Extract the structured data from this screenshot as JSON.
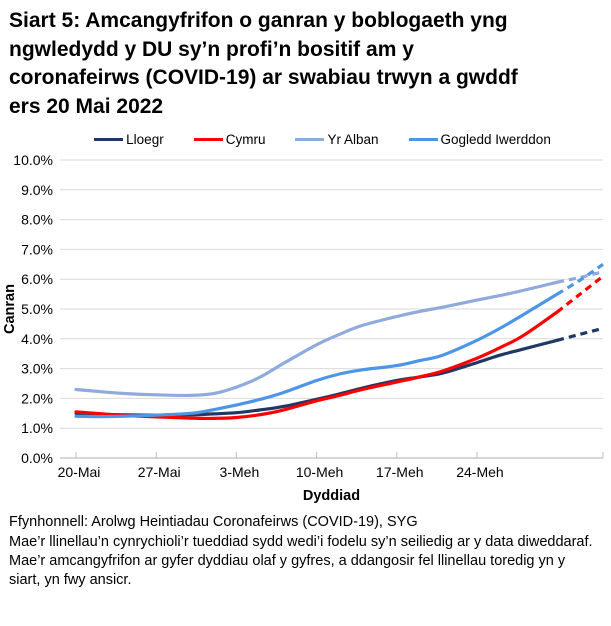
{
  "title_lines": [
    "Siart 5: Amcangyfrifon o ganran y boblogaeth yng",
    "ngwledydd y DU sy’n profi’n bositif am y",
    "coronafeirws (COVID-19) ar swabiau trwyn a gwddf",
    "ers 20 Mai 2022"
  ],
  "chart_data": {
    "type": "line",
    "title": "Siart 5: Amcangyfrifon o ganran y boblogaeth yng ngwledydd y DU sy’n profi’n bositif am y coronafeirws (COVID-19) ar swabiau trwyn a gwddf ers 20 Mai 2022",
    "xlabel": "Dyddiad",
    "ylabel": "Canran",
    "ylim": [
      0,
      10
    ],
    "x_unit": "days since 20 May 2022",
    "x_range_days": [
      0,
      46
    ],
    "grid": "horizontal",
    "legend_position": "top",
    "dash_from_day": 42,
    "dash_meaning": "Mae amcangyfrifon dyddiau olaf y gyfres yn cael eu dangos fel llinellau toredig (yn fwy ansicr)",
    "x_ticks": [
      {
        "day": 0,
        "label": "20-Mai"
      },
      {
        "day": 7,
        "label": "27-Mai"
      },
      {
        "day": 14,
        "label": "3-Meh"
      },
      {
        "day": 21,
        "label": "10-Meh"
      },
      {
        "day": 28,
        "label": "17-Meh"
      },
      {
        "day": 35,
        "label": "24-Meh"
      }
    ],
    "y_ticks": [
      {
        "v": 0,
        "label": "0.0%"
      },
      {
        "v": 1,
        "label": "1.0%"
      },
      {
        "v": 2,
        "label": "2.0%"
      },
      {
        "v": 3,
        "label": "3.0%"
      },
      {
        "v": 4,
        "label": "4.0%"
      },
      {
        "v": 5,
        "label": "5.0%"
      },
      {
        "v": 6,
        "label": "6.0%"
      },
      {
        "v": 7,
        "label": "7.0%"
      },
      {
        "v": 8,
        "label": "8.0%"
      },
      {
        "v": 9,
        "label": "9.0%"
      },
      {
        "v": 10,
        "label": "10.0%"
      }
    ],
    "series": [
      {
        "name": "Lloegr",
        "color": "#1F3864",
        "points": [
          [
            0,
            1.5
          ],
          [
            2,
            1.47
          ],
          [
            4,
            1.45
          ],
          [
            7,
            1.44
          ],
          [
            10,
            1.45
          ],
          [
            12,
            1.48
          ],
          [
            14,
            1.52
          ],
          [
            16,
            1.61
          ],
          [
            18,
            1.72
          ],
          [
            21,
            1.97
          ],
          [
            23,
            2.15
          ],
          [
            25,
            2.35
          ],
          [
            28,
            2.6
          ],
          [
            30,
            2.72
          ],
          [
            32,
            2.85
          ],
          [
            35,
            3.2
          ],
          [
            37,
            3.45
          ],
          [
            39,
            3.65
          ],
          [
            42,
            3.95
          ],
          [
            44,
            4.15
          ],
          [
            46,
            4.35
          ]
        ]
      },
      {
        "name": "Cymru",
        "color": "#FF0000",
        "points": [
          [
            0,
            1.55
          ],
          [
            2,
            1.49
          ],
          [
            4,
            1.43
          ],
          [
            7,
            1.38
          ],
          [
            10,
            1.34
          ],
          [
            12,
            1.33
          ],
          [
            14,
            1.36
          ],
          [
            16,
            1.45
          ],
          [
            18,
            1.6
          ],
          [
            21,
            1.92
          ],
          [
            23,
            2.1
          ],
          [
            25,
            2.3
          ],
          [
            28,
            2.55
          ],
          [
            30,
            2.72
          ],
          [
            32,
            2.92
          ],
          [
            35,
            3.35
          ],
          [
            37,
            3.7
          ],
          [
            39,
            4.1
          ],
          [
            42,
            4.9
          ],
          [
            44,
            5.5
          ],
          [
            46,
            6.1
          ]
        ]
      },
      {
        "name": "Yr Alban",
        "color": "#8FAADC",
        "points": [
          [
            0,
            2.3
          ],
          [
            2,
            2.23
          ],
          [
            4,
            2.17
          ],
          [
            7,
            2.12
          ],
          [
            10,
            2.1
          ],
          [
            12,
            2.16
          ],
          [
            14,
            2.38
          ],
          [
            16,
            2.7
          ],
          [
            18,
            3.15
          ],
          [
            21,
            3.8
          ],
          [
            23,
            4.15
          ],
          [
            25,
            4.45
          ],
          [
            28,
            4.75
          ],
          [
            30,
            4.92
          ],
          [
            32,
            5.06
          ],
          [
            35,
            5.3
          ],
          [
            37,
            5.45
          ],
          [
            39,
            5.62
          ],
          [
            42,
            5.9
          ],
          [
            44,
            6.06
          ],
          [
            46,
            6.25
          ]
        ]
      },
      {
        "name": "Gogledd Iwerddon",
        "color": "#4D95E6",
        "points": [
          [
            0,
            1.4
          ],
          [
            2,
            1.39
          ],
          [
            4,
            1.4
          ],
          [
            7,
            1.44
          ],
          [
            10,
            1.5
          ],
          [
            12,
            1.62
          ],
          [
            14,
            1.78
          ],
          [
            16,
            1.96
          ],
          [
            18,
            2.18
          ],
          [
            21,
            2.6
          ],
          [
            23,
            2.82
          ],
          [
            25,
            2.96
          ],
          [
            28,
            3.1
          ],
          [
            30,
            3.27
          ],
          [
            32,
            3.45
          ],
          [
            35,
            3.95
          ],
          [
            37,
            4.35
          ],
          [
            39,
            4.8
          ],
          [
            42,
            5.5
          ],
          [
            44,
            5.97
          ],
          [
            46,
            6.5
          ]
        ]
      }
    ]
  },
  "footer": {
    "source": "Ffynhonnell: Arolwg Heintiadau Coronafeirws (COVID-19), SYG",
    "note": "Mae’r llinellau’n cynrychioli’r tueddiad sydd wedi’i fodelu sy’n seiliedig ar y data diweddaraf. Mae’r amcangyfrifon ar gyfer dyddiau olaf y gyfres, a ddangosir fel llinellau toredig yn y siart, yn fwy ansicr."
  }
}
